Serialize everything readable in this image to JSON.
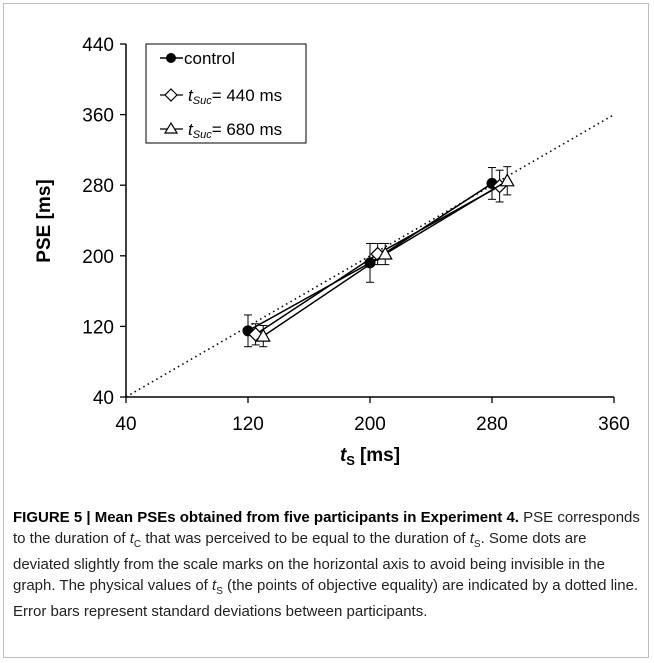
{
  "chart_data": {
    "type": "scatter",
    "xlabel": "t",
    "xlabel_sub": "S",
    "xlabel_unit": "[ms]",
    "ylabel": "PSE [ms]",
    "xlim": [
      40,
      360
    ],
    "ylim": [
      40,
      440
    ],
    "xticks": [
      40,
      120,
      200,
      280,
      360
    ],
    "yticks": [
      40,
      120,
      200,
      280,
      360,
      440
    ],
    "grid": false,
    "legend_position": "top-left",
    "series": [
      {
        "name": "control",
        "marker": "filled-circle",
        "x": [
          120,
          200,
          280
        ],
        "y": [
          115,
          192,
          282
        ],
        "err": [
          18,
          22,
          18
        ]
      },
      {
        "name": "= 440 ms",
        "marker": "open-diamond",
        "x": [
          125,
          205,
          285
        ],
        "y": [
          111,
          202,
          279
        ],
        "err": [
          12,
          12,
          18
        ]
      },
      {
        "name": "= 680 ms",
        "marker": "open-triangle",
        "x": [
          130,
          210,
          290
        ],
        "y": [
          109,
          202,
          285
        ],
        "err": [
          12,
          12,
          16
        ]
      }
    ],
    "legend_prefix": "t",
    "legend_prefix_sub": "Suc",
    "reference_line": {
      "style": "dotted",
      "from": [
        40,
        40
      ],
      "to": [
        360,
        360
      ]
    }
  },
  "caption": {
    "title": "FIGURE 5 | Mean PSEs obtained from five participants in Experiment 4.",
    "s1a": " PSE corresponds to the duration of ",
    "tc": "t",
    "tc_sub": "C",
    "s1b": " that was perceived to be equal to the duration of ",
    "ts": "t",
    "ts_sub": "S",
    "s1c": ". Some dots are deviated slightly from the scale marks on the horizontal axis to avoid being invisible in the graph. The physical values of ",
    "ts2": "t",
    "ts2_sub": "S",
    "s1d": " (the points of objective equality) are indicated by a dotted line. Error bars represent standard deviations between participants."
  }
}
